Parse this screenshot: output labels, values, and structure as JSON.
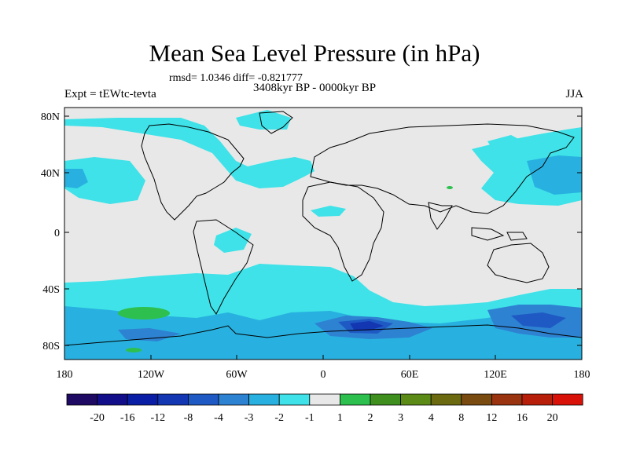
{
  "header": {
    "title": "Mean Sea Level Pressure (in hPa)",
    "stats": "rmsd= 1.0346 diff= -0.821777",
    "experiment": "Expt = tEWtc-tevta",
    "period": "3408kyr BP - 0000kyr BP",
    "season": "JJA"
  },
  "map": {
    "y_labels": [
      "80N",
      "40N",
      "0",
      "40S",
      "80S"
    ],
    "x_labels": [
      "180",
      "120W",
      "60W",
      "0",
      "60E",
      "120E",
      "180"
    ]
  },
  "colorbar": {
    "colors": [
      "#1f0a63",
      "#120e8a",
      "#0a1ea5",
      "#1337b2",
      "#1f5ac4",
      "#2e82d2",
      "#28b1e0",
      "#3ee2e8",
      "#e8e8e8",
      "#2ec04f",
      "#3f8f1e",
      "#5b8b16",
      "#6b6a10",
      "#7a4b10",
      "#9a3410",
      "#b81f0a",
      "#d81208"
    ],
    "labels": [
      "-20",
      "-16",
      "-12",
      "-8",
      "-4",
      "-3",
      "-2",
      "-1",
      "1",
      "2",
      "3",
      "4",
      "8",
      "12",
      "16",
      "20"
    ]
  },
  "chart_data": {
    "type": "heatmap",
    "title": "Mean Sea Level Pressure (in hPa)",
    "subtitle": "3408kyr BP - 0000kyr BP",
    "units": "hPa",
    "season": "JJA",
    "rmsd": 1.0346,
    "diff": -0.821777,
    "x_range": [
      -180,
      180
    ],
    "y_range": [
      -90,
      90
    ],
    "contour_levels": [
      -20,
      -16,
      -12,
      -8,
      -4,
      -3,
      -2,
      -1,
      1,
      2,
      3,
      4,
      8,
      12,
      16,
      20
    ]
  }
}
